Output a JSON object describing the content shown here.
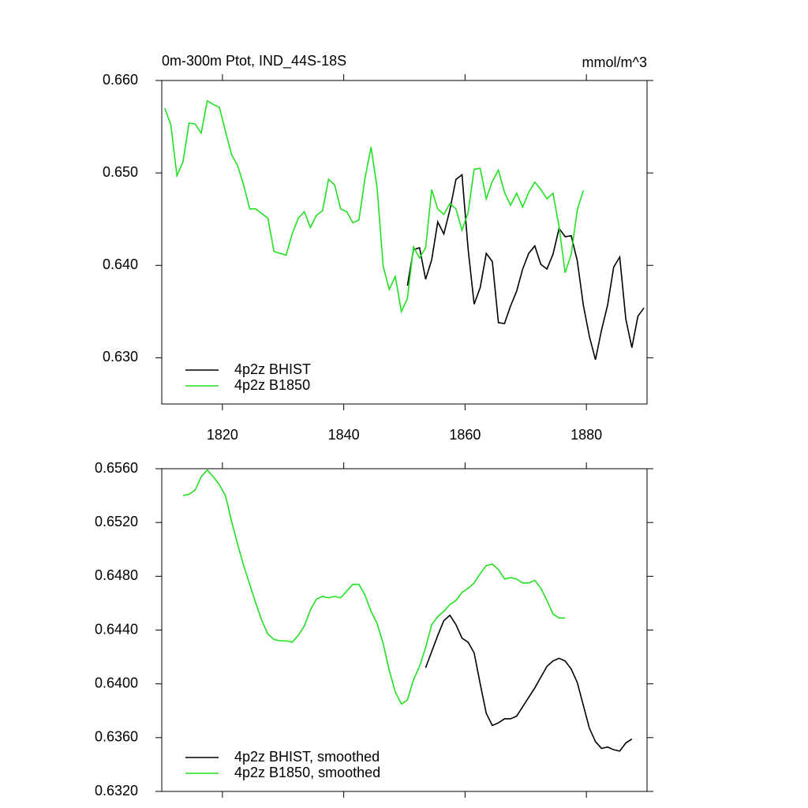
{
  "chart_data": [
    {
      "type": "line",
      "title": "0m-300m Ptot, IND_44S-18S",
      "units": "mmol/m^3",
      "x": [
        1810.5,
        1811.5,
        1812.5,
        1813.5,
        1814.5,
        1815.5,
        1816.5,
        1817.5,
        1818.5,
        1819.5,
        1820.5,
        1821.5,
        1822.5,
        1823.5,
        1824.5,
        1825.5,
        1826.5,
        1827.5,
        1828.5,
        1829.5,
        1830.5,
        1831.5,
        1832.5,
        1833.5,
        1834.5,
        1835.5,
        1836.5,
        1837.5,
        1838.5,
        1839.5,
        1840.5,
        1841.5,
        1842.5,
        1843.5,
        1844.5,
        1845.5,
        1846.5,
        1847.5,
        1848.5,
        1849.5,
        1850.5,
        1851.5,
        1852.5,
        1853.5,
        1854.5,
        1855.5,
        1856.5,
        1857.5,
        1858.5,
        1859.5,
        1860.5,
        1861.5,
        1862.5,
        1863.5,
        1864.5,
        1865.5,
        1866.5,
        1867.5,
        1868.5,
        1869.5,
        1870.5,
        1871.5,
        1872.5,
        1873.5,
        1874.5,
        1875.5,
        1876.5,
        1877.5,
        1878.5,
        1879.5,
        1880.5,
        1881.5,
        1882.5,
        1883.5,
        1884.5,
        1885.5,
        1886.5,
        1887.5,
        1888.5,
        1889.5
      ],
      "series": [
        {
          "name": "4p2z BHIST",
          "color": "#000000",
          "values": [
            null,
            null,
            null,
            null,
            null,
            null,
            null,
            null,
            null,
            null,
            null,
            null,
            null,
            null,
            null,
            null,
            null,
            null,
            null,
            null,
            null,
            null,
            null,
            null,
            null,
            null,
            null,
            null,
            null,
            null,
            null,
            null,
            null,
            null,
            null,
            null,
            null,
            null,
            null,
            null,
            0.6378,
            0.6417,
            0.6419,
            0.6385,
            0.6406,
            0.6447,
            0.6434,
            0.646,
            0.6493,
            0.6498,
            0.6418,
            0.6358,
            0.6376,
            0.6413,
            0.6404,
            0.6338,
            0.6337,
            0.6356,
            0.6372,
            0.6396,
            0.6413,
            0.6421,
            0.6401,
            0.6396,
            0.6412,
            0.644,
            0.6431,
            0.6432,
            0.6405,
            0.6357,
            0.6323,
            0.6298,
            0.633,
            0.6357,
            0.6398,
            0.6409,
            0.6342,
            0.6311,
            0.6345,
            0.6354
          ]
        },
        {
          "name": "4p2z B1850",
          "color": "#22e022",
          "values": [
            0.657,
            0.6552,
            0.6497,
            0.6512,
            0.6554,
            0.6553,
            0.6543,
            0.6578,
            0.6574,
            0.6571,
            0.6545,
            0.652,
            0.6508,
            0.6487,
            0.6461,
            0.6461,
            0.6456,
            0.6451,
            0.6415,
            0.6413,
            0.6411,
            0.6434,
            0.6451,
            0.6458,
            0.6441,
            0.6454,
            0.6459,
            0.6493,
            0.6487,
            0.6461,
            0.6458,
            0.6446,
            0.6449,
            0.6494,
            0.6528,
            0.6484,
            0.6399,
            0.6374,
            0.6388,
            0.635,
            0.6364,
            0.642,
            0.6408,
            0.6419,
            0.6482,
            0.6461,
            0.6455,
            0.6467,
            0.6461,
            0.6438,
            0.6457,
            0.6504,
            0.6505,
            0.6472,
            0.6491,
            0.6503,
            0.6479,
            0.6465,
            0.6478,
            0.6463,
            0.6479,
            0.649,
            0.6482,
            0.6472,
            0.6478,
            0.6442,
            0.6392,
            0.6412,
            0.646,
            0.6481,
            null,
            null,
            null,
            null,
            null,
            null,
            null,
            null,
            null,
            null
          ]
        }
      ],
      "xlim": [
        1810,
        1890
      ],
      "xticks": [
        1820,
        1840,
        1860,
        1880
      ],
      "xtick_labels": true,
      "ylim": [
        0.625,
        0.66
      ],
      "yticks": [
        {
          "value": 0.63,
          "label": "0.630"
        },
        {
          "value": 0.64,
          "label": "0.640"
        },
        {
          "value": 0.65,
          "label": "0.650"
        },
        {
          "value": 0.66,
          "label": "0.660"
        }
      ],
      "legend": "bottom-left"
    },
    {
      "type": "line",
      "x": [
        1810.5,
        1811.5,
        1812.5,
        1813.5,
        1814.5,
        1815.5,
        1816.5,
        1817.5,
        1818.5,
        1819.5,
        1820.5,
        1821.5,
        1822.5,
        1823.5,
        1824.5,
        1825.5,
        1826.5,
        1827.5,
        1828.5,
        1829.5,
        1830.5,
        1831.5,
        1832.5,
        1833.5,
        1834.5,
        1835.5,
        1836.5,
        1837.5,
        1838.5,
        1839.5,
        1840.5,
        1841.5,
        1842.5,
        1843.5,
        1844.5,
        1845.5,
        1846.5,
        1847.5,
        1848.5,
        1849.5,
        1850.5,
        1851.5,
        1852.5,
        1853.5,
        1854.5,
        1855.5,
        1856.5,
        1857.5,
        1858.5,
        1859.5,
        1860.5,
        1861.5,
        1862.5,
        1863.5,
        1864.5,
        1865.5,
        1866.5,
        1867.5,
        1868.5,
        1869.5,
        1870.5,
        1871.5,
        1872.5,
        1873.5,
        1874.5,
        1875.5,
        1876.5,
        1877.5,
        1878.5,
        1879.5,
        1880.5,
        1881.5,
        1882.5,
        1883.5,
        1884.5,
        1885.5,
        1886.5,
        1887.5,
        1888.5,
        1889.5
      ],
      "series": [
        {
          "name": "4p2z BHIST, smoothed",
          "color": "#000000",
          "values": [
            null,
            null,
            null,
            null,
            null,
            null,
            null,
            null,
            null,
            null,
            null,
            null,
            null,
            null,
            null,
            null,
            null,
            null,
            null,
            null,
            null,
            null,
            null,
            null,
            null,
            null,
            null,
            null,
            null,
            null,
            null,
            null,
            null,
            null,
            null,
            null,
            null,
            null,
            null,
            null,
            null,
            null,
            null,
            0.6412,
            0.6424,
            0.6436,
            0.6447,
            0.6451,
            0.6444,
            0.6434,
            0.6431,
            0.6423,
            0.64,
            0.6378,
            0.6369,
            0.6371,
            0.6374,
            0.6374,
            0.6376,
            0.6383,
            0.639,
            0.6397,
            0.6405,
            0.6413,
            0.6417,
            0.6419,
            0.6417,
            0.6411,
            0.6401,
            0.6384,
            0.6367,
            0.6357,
            0.6352,
            0.6353,
            0.6351,
            0.635,
            0.6356,
            0.6359,
            null,
            null
          ]
        },
        {
          "name": "4p2z B1850, smoothed",
          "color": "#22e022",
          "values": [
            null,
            null,
            null,
            0.654,
            0.6541,
            0.6544,
            0.6554,
            0.6559,
            0.6554,
            0.6548,
            0.654,
            0.6521,
            0.6504,
            0.6488,
            0.6474,
            0.646,
            0.6447,
            0.6437,
            0.6433,
            0.6432,
            0.6432,
            0.6431,
            0.6436,
            0.6443,
            0.6455,
            0.6463,
            0.6465,
            0.6464,
            0.6465,
            0.6464,
            0.6469,
            0.6474,
            0.6474,
            0.6466,
            0.6454,
            0.6445,
            0.643,
            0.641,
            0.6394,
            0.6385,
            0.6388,
            0.6403,
            0.6413,
            0.6427,
            0.6444,
            0.645,
            0.6454,
            0.6459,
            0.6462,
            0.6468,
            0.6471,
            0.6475,
            0.6482,
            0.6488,
            0.6489,
            0.6485,
            0.6478,
            0.6479,
            0.6478,
            0.6475,
            0.6475,
            0.6477,
            0.6471,
            0.6462,
            0.6452,
            0.6449,
            0.6449,
            null,
            null,
            null,
            null,
            null,
            null,
            null,
            null,
            null,
            null,
            null,
            null,
            null
          ]
        }
      ],
      "xlim": [
        1810,
        1890
      ],
      "xticks": [
        1820,
        1840,
        1860,
        1880
      ],
      "xtick_labels": false,
      "ylim": [
        0.632,
        0.656
      ],
      "yticks": [
        {
          "value": 0.632,
          "label": "0.6320"
        },
        {
          "value": 0.636,
          "label": "0.6360"
        },
        {
          "value": 0.64,
          "label": "0.6400"
        },
        {
          "value": 0.644,
          "label": "0.6440"
        },
        {
          "value": 0.648,
          "label": "0.6480"
        },
        {
          "value": 0.652,
          "label": "0.6520"
        },
        {
          "value": 0.656,
          "label": "0.6560"
        }
      ],
      "legend": "bottom-left"
    }
  ]
}
